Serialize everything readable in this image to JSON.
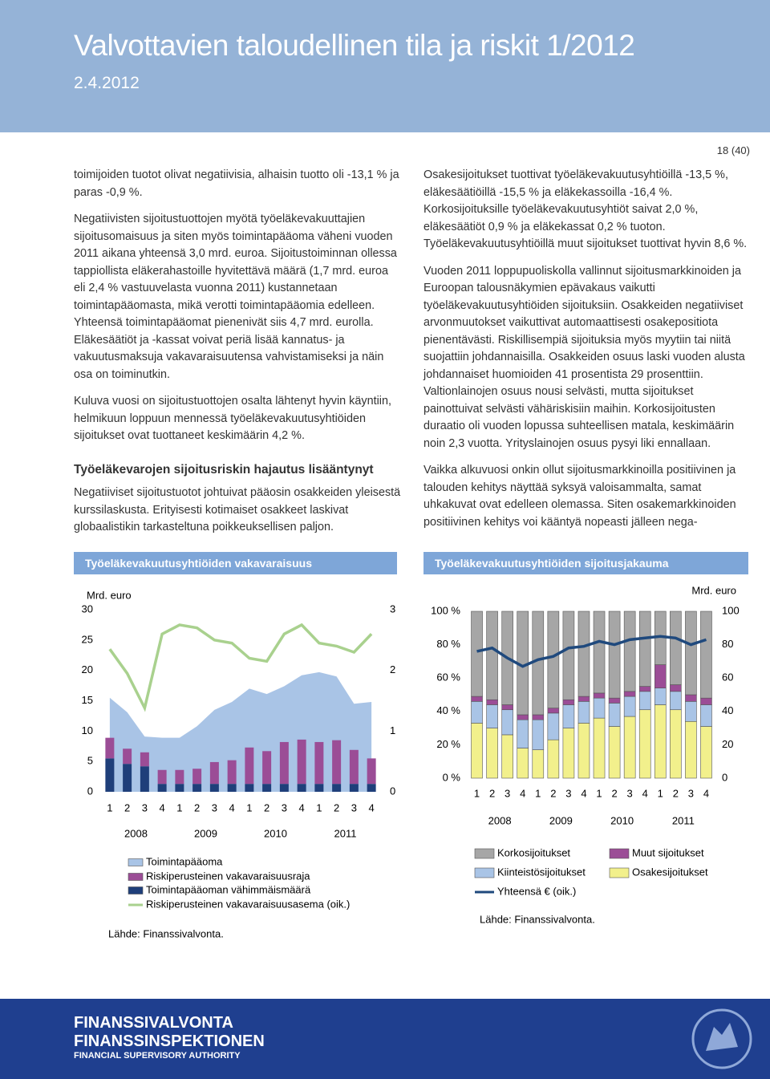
{
  "header": {
    "title": "Valvottavien taloudellinen tila ja riskit 1/2012",
    "date": "2.4.2012"
  },
  "page_number": "18 (40)",
  "left_text": {
    "paragraphs": [
      "toimijoiden tuotot olivat negatiivisia, alhaisin tuotto oli -13,1 % ja paras -0,9 %.",
      "Negatiivisten sijoitustuottojen myötä työeläkevakuuttajien sijoitusomaisuus ja siten myös toimintapääoma väheni vuoden 2011 aikana yhteensä 3,0 mrd. euroa. Sijoitustoiminnan ollessa tappiollista eläkerahastoille hyvitettävä määrä (1,7 mrd. euroa eli 2,4 % vastuuvelasta vuonna 2011) kustannetaan toimintapääomasta, mikä verotti toimintapääomia edelleen. Yhteensä toimintapääomat pienenivät siis 4,7 mrd. eurolla. Eläkesäätiöt ja -kassat voivat periä lisää kannatus- ja vakuutusmaksuja vakavaraisuutensa vahvistamiseksi ja näin osa on toiminutkin.",
      "Kuluva vuosi on sijoitustuottojen osalta lähtenyt hyvin käyntiin, helmikuun loppuun mennessä työeläkevakuutusyhtiöiden sijoitukset ovat tuottaneet keskimäärin 4,2 %."
    ],
    "heading": "Työeläkevarojen sijoitusriskin hajautus lisääntynyt",
    "after_heading": "Negatiiviset sijoitustuotot johtuivat pääosin osakkeiden yleisestä kurssilaskusta. Erityisesti kotimaiset osakkeet laskivat globaalistikin tarkasteltuna poikkeuksellisen paljon."
  },
  "right_text": {
    "paragraphs": [
      "Osakesijoitukset tuottivat työeläkevakuutusyhtiöillä -13,5 %, eläkesäätiöillä -15,5 % ja eläkekassoilla -16,4 %. Korkosijoituksille työeläkevakuutusyhtiöt saivat 2,0 %, eläkesäätiöt 0,9 % ja eläkekassat 0,2 % tuoton. Työeläkevakuutusyhtiöillä muut sijoitukset tuottivat hyvin 8,6 %.",
      "Vuoden 2011 loppupuoliskolla vallinnut sijoitusmarkkinoiden ja Euroopan talousnäkymien epävakaus vaikutti työeläkevakuutusyhtiöiden sijoituksiin. Osakkeiden negatiiviset arvonmuutokset vaikuttivat automaattisesti osakepositiota pienentävästi. Riskillisempiä sijoituksia myös myytiin tai niitä suojattiin johdannaisilla. Osakkeiden osuus laski vuoden alusta johdannaiset huomioiden 41 prosentista 29 prosenttiin. Valtionlainojen osuus nousi selvästi, mutta sijoitukset painottuivat selvästi vähäriskisiin maihin. Korkosijoitusten duraatio oli vuoden lopussa suhteellisen matala, keskimäärin noin 2,3 vuotta. Yrityslainojen osuus pysyi liki ennallaan.",
      "Vaikka alkuvuosi onkin ollut sijoitusmarkkinoilla positiivinen ja talouden kehitys näyttää syksyä valoisammalta, samat uhkakuvat ovat edelleen olemassa. Siten osakemarkkinoiden positiivinen kehitys voi kääntyä nopeasti jälleen nega-"
    ]
  },
  "chart_data": [
    {
      "type": "bar",
      "title": "Työeläkevakuutusyhtiöiden vakavaraisuus",
      "y_label": "Mrd. euro",
      "categories": [
        "1",
        "2",
        "3",
        "4",
        "1",
        "2",
        "3",
        "4",
        "1",
        "2",
        "3",
        "4",
        "1",
        "2",
        "3",
        "4"
      ],
      "category_groups": [
        "2008",
        "2009",
        "2010",
        "2011"
      ],
      "ylim": [
        0,
        30
      ],
      "yticks": [
        0,
        5,
        10,
        15,
        20,
        25,
        30
      ],
      "y2lim": [
        0,
        3
      ],
      "y2ticks": [
        0,
        1,
        2,
        3
      ],
      "series": [
        {
          "name": "Toimintapääoma",
          "kind": "area",
          "color": "#a9c4e6",
          "values": [
            15.5,
            13.1,
            9.1,
            8.9,
            8.9,
            10.8,
            13.5,
            14.8,
            17.0,
            16.1,
            17.4,
            19.2,
            19.7,
            19.0,
            14.5,
            14.8
          ]
        },
        {
          "name": "Riskiperusteinen vakavaraisuusraja",
          "kind": "bar",
          "color": "#9b4d96",
          "values": [
            3.4,
            2.5,
            2.3,
            2.3,
            2.3,
            2.5,
            3.6,
            3.9,
            6.0,
            5.4,
            6.9,
            7.3,
            6.9,
            7.2,
            5.6,
            4.2
          ]
        },
        {
          "name": "Toimintapääoman vähimmäismäärä",
          "kind": "bar",
          "color": "#1f3f7a",
          "values": [
            5.5,
            4.6,
            4.2,
            1.3,
            1.3,
            1.3,
            1.3,
            1.3,
            1.3,
            1.3,
            1.3,
            1.3,
            1.3,
            1.3,
            1.3,
            1.3
          ]
        },
        {
          "name": "Riskiperusteinen vakavaraisuusasema (oik.)",
          "kind": "line",
          "axis": "y2",
          "color": "#a9d18e",
          "values": [
            2.35,
            1.95,
            1.38,
            2.6,
            2.75,
            2.7,
            2.5,
            2.45,
            2.2,
            2.15,
            2.6,
            2.75,
            2.45,
            2.4,
            2.3,
            2.6
          ]
        }
      ],
      "source": "Lähde: Finanssivalvonta."
    },
    {
      "type": "bar",
      "title": "Työeläkevakuutusyhtiöiden sijoitusjakauma",
      "y2_label": "Mrd. euro",
      "categories": [
        "1",
        "2",
        "3",
        "4",
        "1",
        "2",
        "3",
        "4",
        "1",
        "2",
        "3",
        "4",
        "1",
        "2",
        "3",
        "4"
      ],
      "category_groups": [
        "2008",
        "2009",
        "2010",
        "2011"
      ],
      "ylim": [
        0,
        100
      ],
      "yticks": [
        {
          "value": 0,
          "label": "0 %"
        },
        {
          "value": 20,
          "label": "20 %"
        },
        {
          "value": 40,
          "label": "40 %"
        },
        {
          "value": 60,
          "label": "60 %"
        },
        {
          "value": 80,
          "label": "80 %"
        },
        {
          "value": 100,
          "label": "100 %"
        }
      ],
      "y2lim": [
        0,
        100
      ],
      "y2ticks": [
        0,
        20,
        40,
        60,
        80,
        100
      ],
      "series": [
        {
          "name": "Korkosijoitukset",
          "kind": "bar",
          "color": "#a6a6a6",
          "values": [
            51,
            53,
            56,
            62,
            62,
            58,
            53,
            51,
            49,
            52,
            48,
            45,
            32,
            44,
            50,
            52
          ]
        },
        {
          "name": "Muut sijoitukset",
          "kind": "bar",
          "color": "#9b4d96",
          "values": [
            3,
            3,
            3,
            3,
            3,
            3,
            3,
            3,
            3,
            3,
            3,
            3,
            14,
            4,
            4,
            4
          ]
        },
        {
          "name": "Kiinteistösijoitukset",
          "kind": "bar",
          "color": "#a9c4e6",
          "values": [
            13,
            14,
            15,
            17,
            18,
            16,
            14,
            13,
            12,
            14,
            12,
            11,
            10,
            11,
            12,
            13
          ]
        },
        {
          "name": "Osakesijoitukset",
          "kind": "bar",
          "color": "#f2f08c",
          "values": [
            33,
            30,
            26,
            18,
            17,
            23,
            30,
            33,
            36,
            31,
            37,
            41,
            44,
            41,
            34,
            31
          ]
        },
        {
          "name": "Yhteensä € (oik.)",
          "kind": "line",
          "axis": "y2",
          "color": "#1f497d",
          "values": [
            76,
            78,
            72,
            67,
            71,
            73,
            78,
            79,
            82,
            80,
            83,
            84,
            85,
            84,
            80,
            83
          ]
        }
      ],
      "source": "Lähde: Finanssivalvonta."
    }
  ],
  "footer": {
    "lines": [
      "FINANSSIVALVONTA",
      "FINANSSINSPEKTIONEN",
      "FINANCIAL SUPERVISORY AUTHORITY"
    ]
  }
}
